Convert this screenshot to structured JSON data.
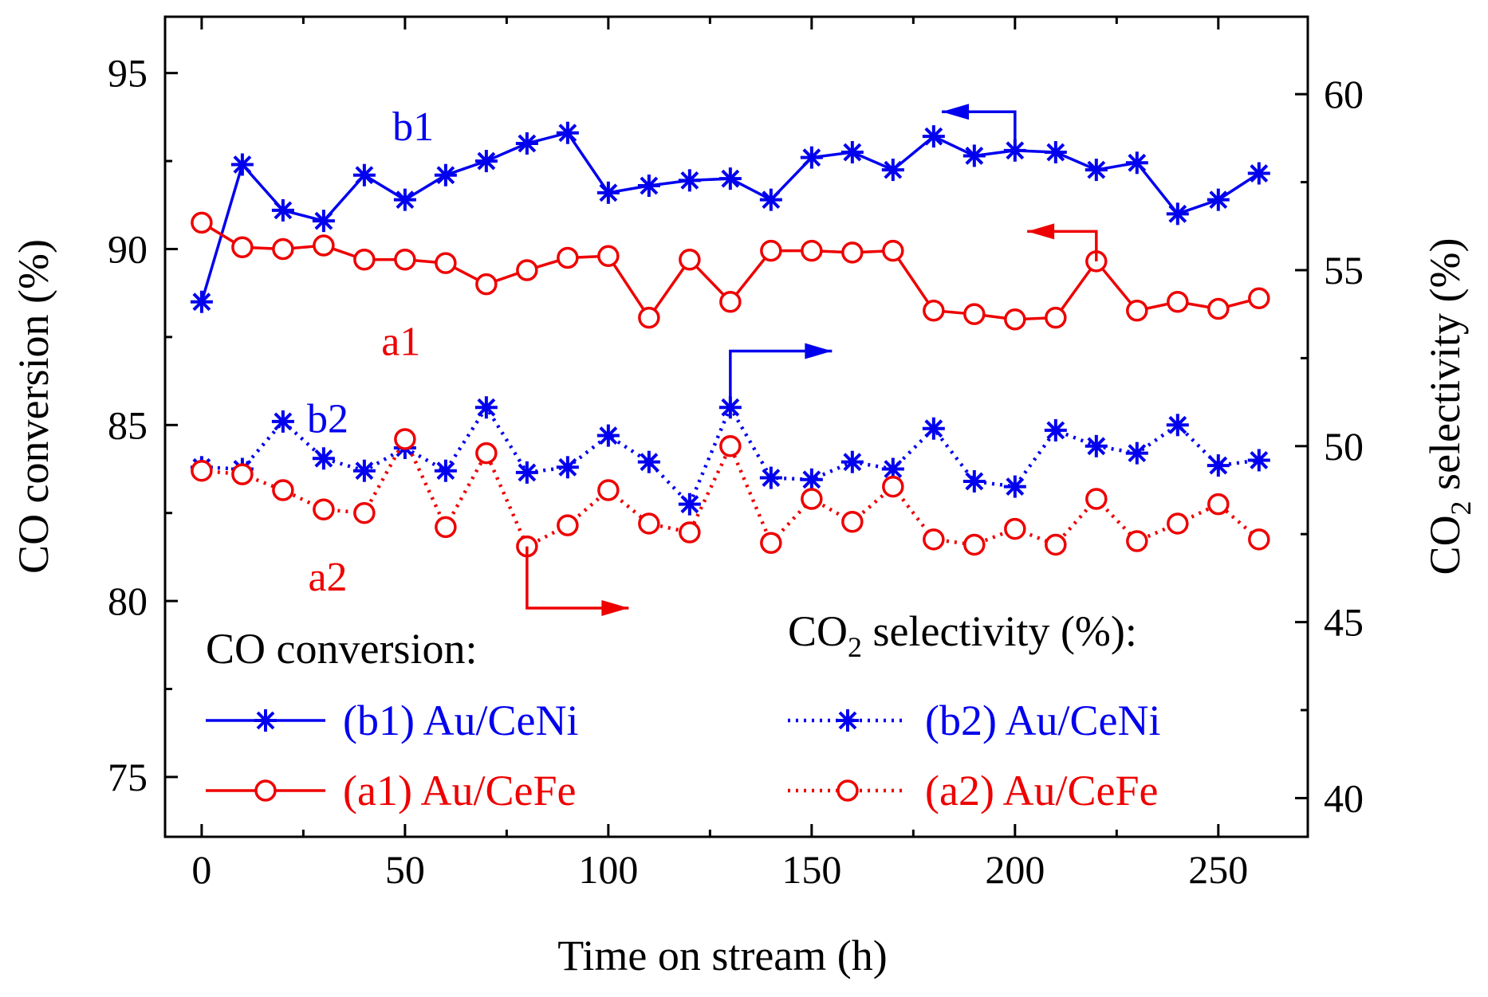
{
  "chart_data": {
    "type": "line",
    "xlabel": "Time on stream (h)",
    "ylabel_left": "CO conversion (%)",
    "ylabel_right_prefix": "CO",
    "ylabel_right_sub": "2",
    "ylabel_right_suffix": " selectivity (%)",
    "xlim": [
      -9,
      272
    ],
    "ylim_left": [
      73.3,
      96.6
    ],
    "ylim_right": [
      38.9,
      62.2
    ],
    "xticks": [
      "0",
      "50",
      "100",
      "150",
      "200",
      "250"
    ],
    "yticks_left": [
      "75",
      "80",
      "85",
      "90",
      "95"
    ],
    "yticks_right": [
      "40",
      "45",
      "50",
      "55",
      "60"
    ],
    "x": [
      0,
      10,
      20,
      30,
      40,
      50,
      60,
      70,
      80,
      90,
      100,
      110,
      120,
      130,
      140,
      150,
      160,
      170,
      180,
      190,
      200,
      210,
      220,
      230,
      240,
      250,
      260
    ],
    "series": [
      {
        "id": "b1",
        "name": "(b1) Au/CeNi",
        "axis": "left",
        "style": "solid",
        "marker": "asterisk",
        "color": "#0000ee",
        "values": [
          88.5,
          92.4,
          91.1,
          90.8,
          92.1,
          91.4,
          92.1,
          92.5,
          93.0,
          93.3,
          91.6,
          91.8,
          91.95,
          92.0,
          91.4,
          92.6,
          92.75,
          92.25,
          93.2,
          92.65,
          92.8,
          92.75,
          92.25,
          92.45,
          91.0,
          91.4,
          92.15
        ]
      },
      {
        "id": "a1",
        "name": "(a1) Au/CeFe",
        "axis": "left",
        "style": "solid",
        "marker": "circle",
        "color": "#ee0000",
        "values": [
          90.75,
          90.05,
          90.0,
          90.1,
          89.7,
          89.7,
          89.6,
          89.0,
          89.4,
          89.75,
          89.8,
          88.05,
          89.7,
          88.5,
          89.95,
          89.95,
          89.9,
          89.95,
          88.25,
          88.15,
          88.0,
          88.05,
          89.65,
          88.25,
          88.5,
          88.3,
          88.6
        ]
      },
      {
        "id": "b2",
        "name": "(b2) Au/CeNi",
        "axis": "right",
        "style": "dotted",
        "marker": "asterisk",
        "color": "#0000ee",
        "values": [
          49.4,
          49.35,
          50.7,
          49.65,
          49.3,
          49.95,
          49.3,
          51.1,
          49.25,
          49.4,
          50.3,
          49.55,
          48.35,
          51.1,
          49.1,
          49.05,
          49.55,
          49.35,
          50.5,
          49.0,
          48.85,
          50.45,
          50.0,
          49.8,
          50.6,
          49.45,
          49.6
        ]
      },
      {
        "id": "a2",
        "name": "(a2) Au/CeFe",
        "axis": "right",
        "style": "dotted",
        "marker": "circle",
        "color": "#ee0000",
        "values": [
          49.3,
          49.2,
          48.75,
          48.2,
          48.1,
          50.2,
          47.7,
          49.8,
          47.15,
          47.75,
          48.75,
          47.8,
          47.55,
          50.0,
          47.25,
          48.5,
          47.85,
          48.85,
          47.35,
          47.2,
          47.65,
          47.2,
          48.5,
          47.3,
          47.8,
          48.35,
          47.35
        ]
      }
    ],
    "annotations": [
      {
        "text": "b1",
        "color": "#0000ee",
        "x": 52,
        "y_left": 93.5
      },
      {
        "text": "a1",
        "color": "#ee0000",
        "x": 49,
        "y_left": 87.4
      },
      {
        "text": "b2",
        "color": "#0000ee",
        "x": 31,
        "y_left": 85.2
      },
      {
        "text": "a2",
        "color": "#ee0000",
        "x": 31,
        "y_left": 80.7
      }
    ],
    "axis_arrows": [
      {
        "series": "b1",
        "direction": "left",
        "color": "#0000ee",
        "x_from": 200,
        "x_to": 182,
        "y_left_from": 92.7,
        "y_left_at": 93.9
      },
      {
        "series": "a1",
        "direction": "left",
        "color": "#ee0000",
        "x_from": 220,
        "x_to": 203,
        "y_left_from": 89.65,
        "y_left_at": 90.5
      },
      {
        "series": "b2",
        "direction": "right",
        "color": "#0000ee",
        "x_from": 130,
        "x_to": 155,
        "y_right_from": 51.1,
        "y_right_at": 52.7
      },
      {
        "series": "a2",
        "direction": "right",
        "color": "#ee0000",
        "x_from": 80,
        "x_to": 105,
        "y_right_from": 47.15,
        "y_right_at": 45.4
      }
    ],
    "legend": {
      "left_title": "CO conversion:",
      "right_title_prefix": "CO",
      "right_title_sub": "2",
      "right_title_suffix": " selectivity (%):",
      "entries": [
        {
          "series": "b1",
          "label": "(b1) Au/CeNi",
          "column": "left",
          "row": 0
        },
        {
          "series": "a1",
          "label": "(a1) Au/CeFe",
          "column": "left",
          "row": 1
        },
        {
          "series": "b2",
          "label": "(b2) Au/CeNi",
          "column": "right",
          "row": 0
        },
        {
          "series": "a2",
          "label": "(a2) Au/CeFe",
          "column": "right",
          "row": 1
        }
      ]
    }
  }
}
